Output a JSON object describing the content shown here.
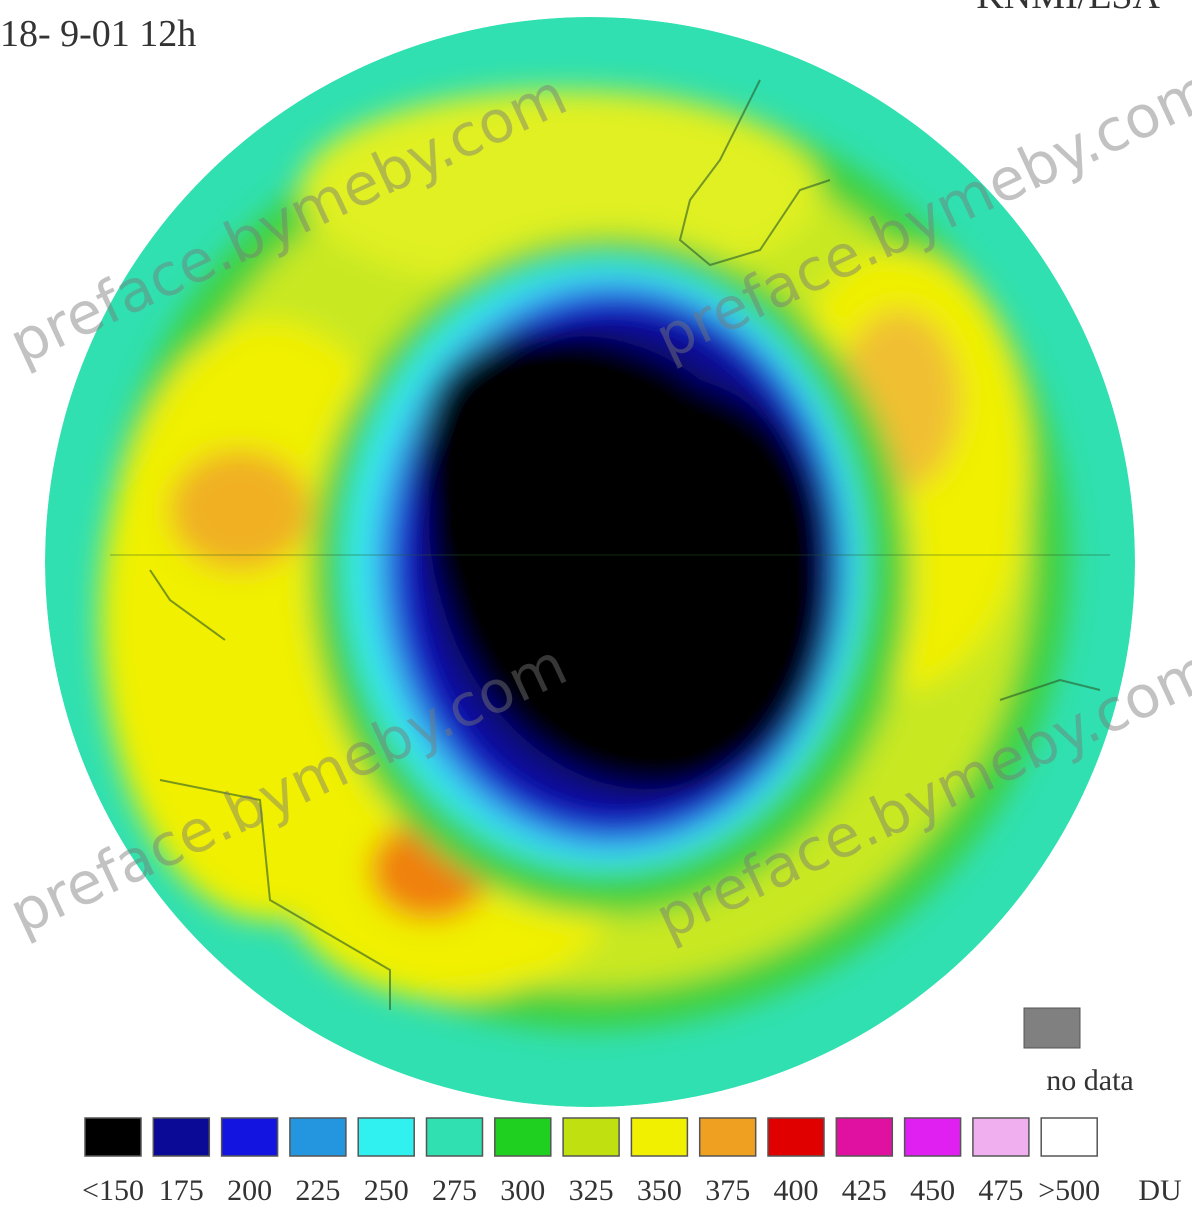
{
  "header": {
    "date": "18- 9-01 12h",
    "source": "KNMI/ESA"
  },
  "legend": {
    "items": [
      {
        "label": "<150",
        "color": "#000000"
      },
      {
        "label": "175",
        "color": "#0a0a96"
      },
      {
        "label": "200",
        "color": "#1414e0"
      },
      {
        "label": "225",
        "color": "#2496e0"
      },
      {
        "label": "250",
        "color": "#30f0f0"
      },
      {
        "label": "275",
        "color": "#30e0b0"
      },
      {
        "label": "300",
        "color": "#20d020"
      },
      {
        "label": "325",
        "color": "#c0e010"
      },
      {
        "label": "350",
        "color": "#f0f000"
      },
      {
        "label": "375",
        "color": "#f0a020"
      },
      {
        "label": "400",
        "color": "#e00000"
      },
      {
        "label": "425",
        "color": "#e010a0"
      },
      {
        "label": "450",
        "color": "#e020f0"
      },
      {
        "label": "475",
        "color": "#f0b0f0"
      },
      {
        "label": ">500",
        "color": "#ffffff"
      }
    ],
    "unit": "DU",
    "no_data": {
      "label": "no data",
      "color": "#808080"
    }
  },
  "watermarks": [
    "preface.bymeby.com",
    "preface.bymeby.com",
    "preface.bymeby.com",
    "preface.bymeby.com"
  ]
}
